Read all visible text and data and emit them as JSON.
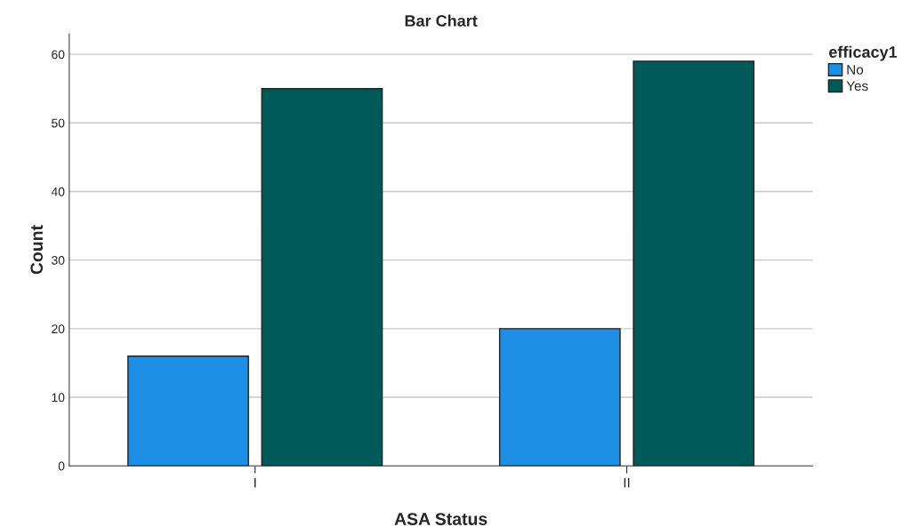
{
  "chart_data": {
    "type": "bar",
    "title": "Bar Chart",
    "xlabel": "ASA Status",
    "ylabel": "Count",
    "legend_title": "efficacy1",
    "categories": [
      "I",
      "II"
    ],
    "series": [
      {
        "name": "No",
        "color": "#1f8fe5",
        "values": [
          16,
          20
        ]
      },
      {
        "name": "Yes",
        "color": "#005a5a",
        "values": [
          55,
          59
        ]
      }
    ],
    "ylim": [
      0,
      63
    ],
    "yticks": [
      0,
      10,
      20,
      30,
      40,
      50,
      60
    ],
    "grid": "y",
    "legend": "top right"
  }
}
